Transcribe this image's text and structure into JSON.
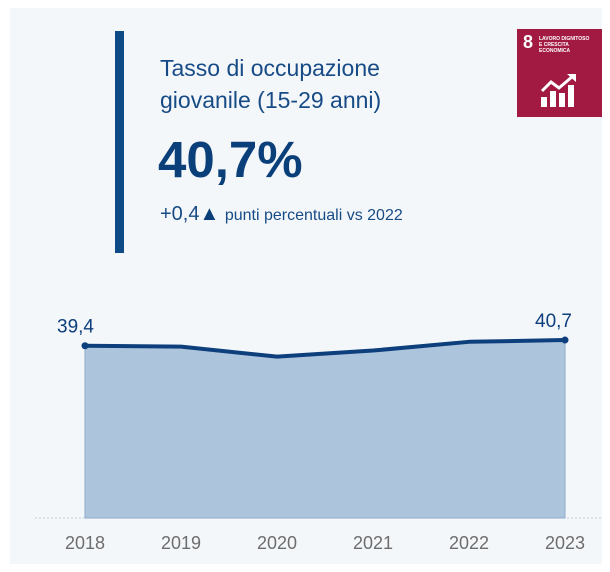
{
  "kpi": {
    "title_line1": "Tasso di occupazione",
    "title_line2": "giovanile (15-29 anni)",
    "value": "40,7%",
    "delta_value": "+0,4",
    "delta_symbol": "▲",
    "delta_text": "punti percentuali vs 2022"
  },
  "sdg": {
    "number": "8",
    "line1": "LAVORO DIGNITOSO",
    "line2": "E CRESCITA",
    "line3": "ECONOMICA",
    "icon": "growth-chart-icon",
    "color": "#a21942"
  },
  "colors": {
    "accent": "#0e4a86",
    "line": "#0d3f7c",
    "area": "#adc4dd",
    "axis_text": "#6d6d6d"
  },
  "chart_data": {
    "type": "area",
    "categories": [
      "2018",
      "2019",
      "2020",
      "2021",
      "2022",
      "2023"
    ],
    "values": [
      39.4,
      39.2,
      36.9,
      38.3,
      40.3,
      40.7
    ],
    "data_labels": [
      "39,4",
      "",
      "",
      "",
      "",
      "40,7"
    ],
    "ylim": [
      0,
      43
    ],
    "grid": false,
    "title": "",
    "xlabel": "",
    "ylabel": ""
  }
}
